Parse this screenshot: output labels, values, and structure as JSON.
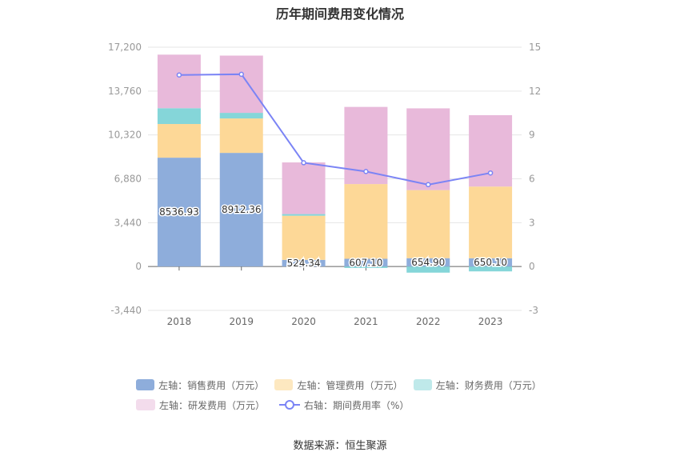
{
  "chart_data": {
    "type": "bar",
    "title": "历年期间费用变化情况",
    "categories": [
      "2018",
      "2019",
      "2020",
      "2021",
      "2022",
      "2023"
    ],
    "left_axis": {
      "ticks": [
        "17,200",
        "13,760",
        "10,320",
        "6,880",
        "3,440",
        "0",
        "-3,440"
      ],
      "range": [
        -3440,
        17200
      ]
    },
    "right_axis": {
      "ticks": [
        "15",
        "12",
        "9",
        "6",
        "3",
        "0",
        "-3"
      ],
      "range": [
        -3,
        15
      ]
    },
    "stacked": true,
    "series": [
      {
        "name": "左轴：销售费用（万元）",
        "color": "#8eaddb",
        "values": [
          8536.93,
          8912.36,
          524.34,
          607.1,
          654.9,
          650.1
        ],
        "labels": [
          "8536.93",
          "8912.36",
          "524.34",
          "607.10",
          "654.90",
          "650.10"
        ]
      },
      {
        "name": "左轴：管理费用（万元）",
        "color": "#fdd897",
        "values": [
          2640,
          2700,
          3460,
          5860,
          5340,
          5620
        ]
      },
      {
        "name": "左轴：财务费用（万元）",
        "color": "#85d6d9",
        "values": [
          1240,
          440,
          130,
          -110,
          -480,
          -380
        ]
      },
      {
        "name": "左轴：研发费用（万元）",
        "color": "#e8b9da",
        "values": [
          4200,
          4490,
          4050,
          6050,
          6410,
          5600
        ]
      }
    ],
    "line_series": {
      "name": "右轴：期间费用率（%）",
      "color": "#7b84f5",
      "values": [
        13.1,
        13.15,
        7.1,
        6.5,
        5.6,
        6.4
      ]
    },
    "grid": true,
    "legend_position": "bottom"
  },
  "source_text": "数据来源：恒生聚源"
}
